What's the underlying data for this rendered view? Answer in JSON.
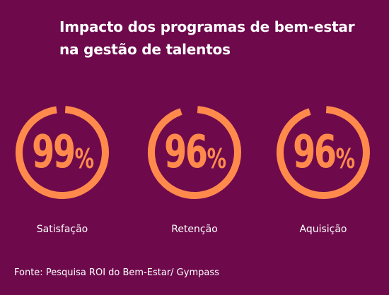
{
  "header": {
    "title_line1": "Impacto dos programas de bem-estar",
    "title_line2": "na gestão de talentos"
  },
  "colors": {
    "background": "#6e0a4c",
    "accent": "#ff8a4c",
    "text": "#ffffff"
  },
  "chart_data": {
    "type": "pie",
    "title": "Impacto dos programas de bem-estar na gestão de talentos",
    "max": 100,
    "unit": "%",
    "categories": [
      "Satisfação",
      "Retenção",
      "Aquisição"
    ],
    "values": [
      99,
      96,
      96
    ],
    "value_labels": [
      "99",
      "96",
      "96"
    ]
  },
  "footer": {
    "source": "Fonte: Pesquisa ROI do Bem-Estar/ Gympass"
  }
}
